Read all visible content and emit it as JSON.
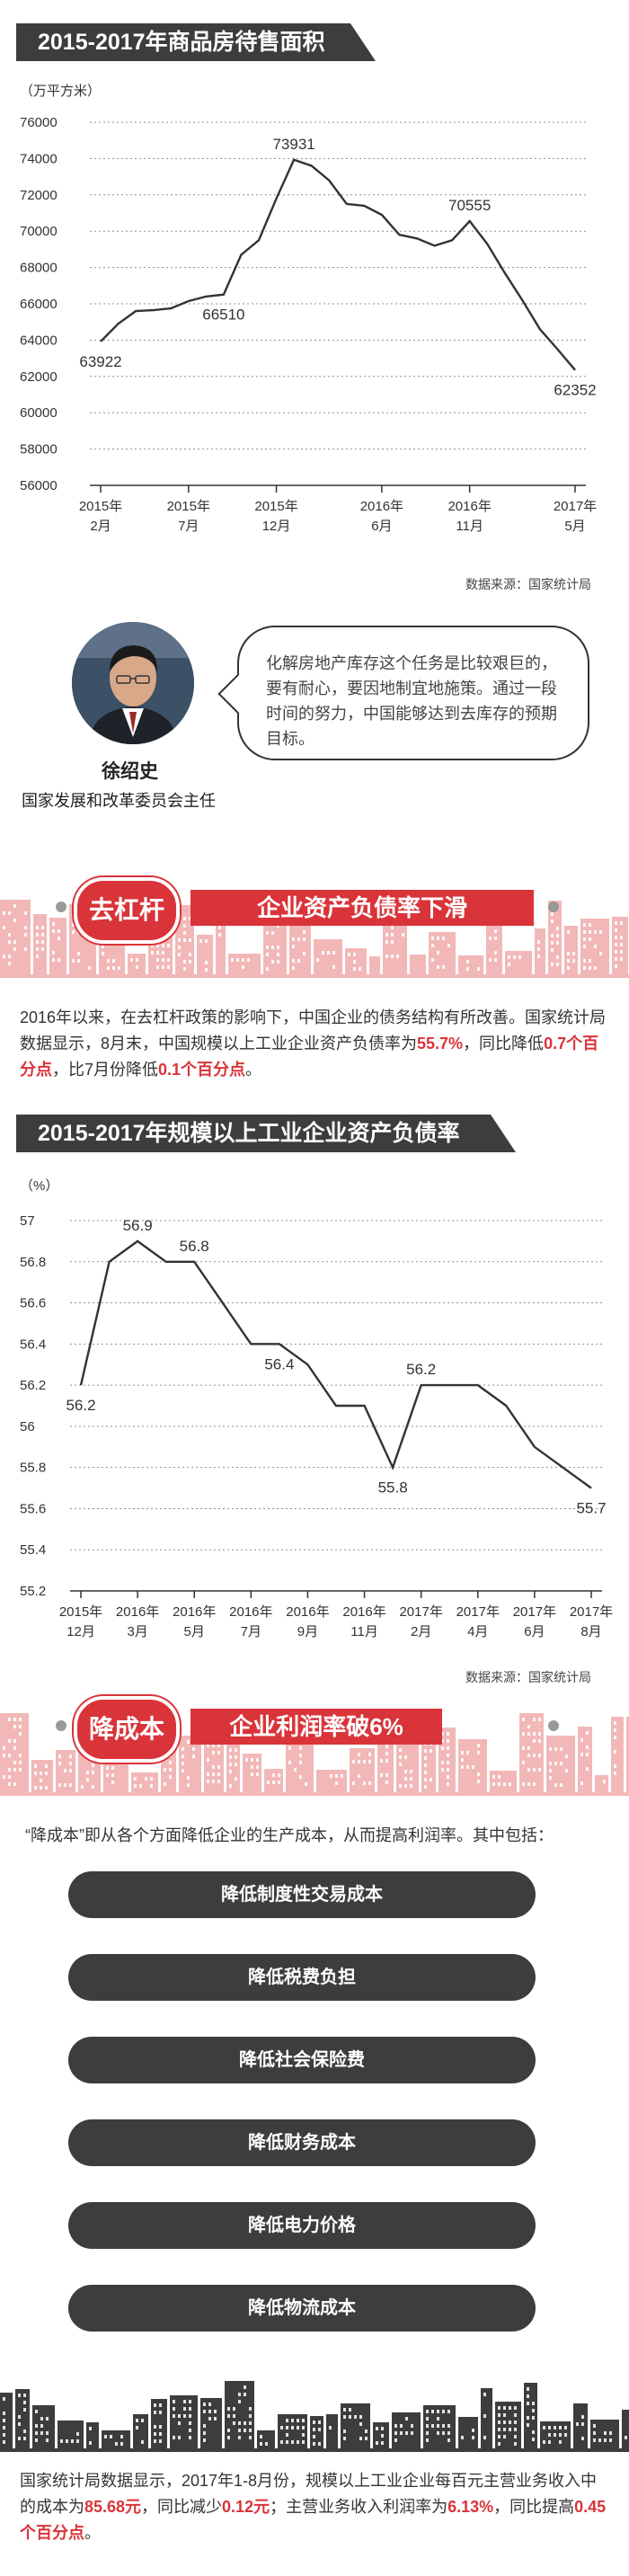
{
  "chart1": {
    "header": "2015-2017年商品房待售面积",
    "source": "数据来源：国家统计局",
    "chart_data": {
      "type": "line",
      "title": "2015-2017年商品房待售面积",
      "ylabel": "（万平方米）",
      "ylim": [
        56000,
        76000
      ],
      "yticks": [
        56000,
        58000,
        60000,
        62000,
        64000,
        66000,
        68000,
        70000,
        72000,
        74000,
        76000
      ],
      "xticks": [
        {
          "line1": "2015年",
          "line2": "2月"
        },
        {
          "line1": "2015年",
          "line2": "7月"
        },
        {
          "line1": "2015年",
          "line2": "12月"
        },
        {
          "line1": "2016年",
          "line2": "6月"
        },
        {
          "line1": "2016年",
          "line2": "11月"
        },
        {
          "line1": "2017年",
          "line2": "5月"
        }
      ],
      "xtick_index": [
        0,
        5,
        10,
        16,
        21,
        27
      ],
      "values": [
        63922,
        64900,
        65600,
        65650,
        65750,
        66150,
        66400,
        66510,
        68700,
        69500,
        71800,
        73931,
        73600,
        72800,
        71500,
        71400,
        70900,
        69800,
        69600,
        69200,
        69500,
        70555,
        69300,
        67700,
        66200,
        64600,
        63500,
        62352
      ],
      "annotations": [
        {
          "index": 0,
          "text": "63922",
          "pos": "below"
        },
        {
          "index": 7,
          "text": "66510",
          "pos": "below"
        },
        {
          "index": 11,
          "text": "73931",
          "pos": "above"
        },
        {
          "index": 21,
          "text": "70555",
          "pos": "above"
        },
        {
          "index": 27,
          "text": "62352",
          "pos": "below"
        }
      ]
    }
  },
  "quote": {
    "text": "化解房地产库存这个任务是比较艰巨的，要有耐心，要因地制宜地施策。通过一段时间的努力，中国能够达到去库存的预期目标。",
    "name": "徐绍史",
    "title": "国家发展和改革委员会主任"
  },
  "section2": {
    "tag": "去杠杆",
    "banner": "企业资产负债率下滑",
    "para": {
      "t1": "2016年以来，在去杠杆政策的影响下，中国企业的债务结构有所改善。国家统计局数据显示，8月末，中国规模以上工业企业资产负债率为",
      "h1": "55.7%",
      "t2": "，同比降低",
      "h2": "0.7个百分点",
      "t3": "，比7月份降低",
      "h3": "0.1个百分点",
      "t4": "。"
    }
  },
  "chart2": {
    "header": "2015-2017年规模以上工业企业资产负债率",
    "source": "数据来源：国家统计局",
    "chart_data": {
      "type": "line",
      "title": "2015-2017年规模以上工业企业资产负债率",
      "ylabel": "（%）",
      "ylim": [
        55.2,
        57
      ],
      "yticks": [
        55.2,
        55.4,
        55.6,
        55.8,
        56,
        56.2,
        56.4,
        56.6,
        56.8,
        57
      ],
      "xticks": [
        {
          "line1": "2015年",
          "line2": "12月"
        },
        {
          "line1": "2016年",
          "line2": "3月"
        },
        {
          "line1": "2016年",
          "line2": "5月"
        },
        {
          "line1": "2016年",
          "line2": "7月"
        },
        {
          "line1": "2016年",
          "line2": "9月"
        },
        {
          "line1": "2016年",
          "line2": "11月"
        },
        {
          "line1": "2017年",
          "line2": "2月"
        },
        {
          "line1": "2017年",
          "line2": "4月"
        },
        {
          "line1": "2017年",
          "line2": "6月"
        },
        {
          "line1": "2017年",
          "line2": "8月"
        }
      ],
      "xtick_index": [
        0,
        2,
        4,
        6,
        8,
        10,
        12,
        14,
        16,
        18
      ],
      "values": [
        56.2,
        56.8,
        56.9,
        56.8,
        56.8,
        56.6,
        56.4,
        56.4,
        56.3,
        56.1,
        56.1,
        55.8,
        56.2,
        56.2,
        56.2,
        56.1,
        55.9,
        55.8,
        55.7
      ],
      "annotations": [
        {
          "index": 0,
          "text": "56.2",
          "pos": "below"
        },
        {
          "index": 2,
          "text": "56.9",
          "pos": "above"
        },
        {
          "index": 4,
          "text": "56.8",
          "pos": "above"
        },
        {
          "index": 7,
          "text": "56.4",
          "pos": "below"
        },
        {
          "index": 11,
          "text": "55.8",
          "pos": "below"
        },
        {
          "index": 12,
          "text": "56.2",
          "pos": "above"
        },
        {
          "index": 18,
          "text": "55.7",
          "pos": "below"
        }
      ]
    }
  },
  "section3": {
    "tag": "降成本",
    "banner": "企业利润率破6%",
    "intro": "“降成本”即从各个方面降低企业的生产成本，从而提高利润率。其中包括：",
    "items": [
      "降低制度性交易成本",
      "降低税费负担",
      "降低社会保险费",
      "降低财务成本",
      "降低电力价格",
      "降低物流成本"
    ],
    "para": {
      "t1": "国家统计局数据显示，2017年1-8月份，规模以上工业企业每百元主营业务收入中的成本为",
      "h1": "85.68元",
      "t2": "，同比减少",
      "h2": "0.12元",
      "t3": "；主营业务收入利润率为",
      "h3": "6.13%",
      "t4": "，同比提高",
      "h4": "0.45个百分点",
      "t5": "。"
    }
  },
  "colors": {
    "dark": "#3d3d40",
    "red": "#d9343a",
    "pink": "#f2b8b8",
    "line": "#333333"
  }
}
